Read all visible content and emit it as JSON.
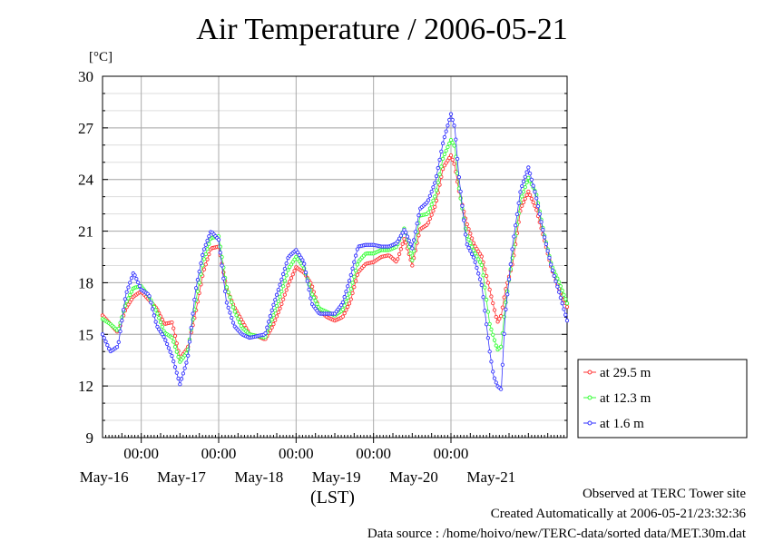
{
  "title": "Air Temperature / 2006-05-21",
  "y_unit": "[°C]",
  "x_unit": "(LST)",
  "footer": {
    "observed": "Observed at TERC Tower site",
    "created": "Created Automatically at 2006-05-21/23:32:36",
    "source": "Data source : /home/hoivo/new/TERC-data/sorted  data/MET.30m.dat"
  },
  "colors": {
    "s1": "#ff3333",
    "s2": "#33ff33",
    "s3": "#3333ff"
  },
  "chart_data": {
    "type": "line",
    "ylim": [
      9,
      30
    ],
    "yticks": [
      9,
      12,
      15,
      18,
      21,
      24,
      27,
      30
    ],
    "xlim": [
      0,
      6
    ],
    "x_unit_desc": "days from 2006-05-15 12:00 LST",
    "midnight_label": "00:00",
    "midnight_ticks": [
      0.5,
      1.5,
      2.5,
      3.5,
      4.5
    ],
    "day_labels": [
      "May-16",
      "May-17",
      "May-18",
      "May-19",
      "May-20",
      "May-21"
    ],
    "legend_position": "right",
    "grid": true,
    "series": [
      {
        "name": "at 29.5 m",
        "color": "#ff3333",
        "points": [
          [
            0,
            16.1
          ],
          [
            0.1,
            15.6
          ],
          [
            0.2,
            15.1
          ],
          [
            0.3,
            16.5
          ],
          [
            0.4,
            17.2
          ],
          [
            0.5,
            17.5
          ],
          [
            0.6,
            17.0
          ],
          [
            0.7,
            16.5
          ],
          [
            0.8,
            15.6
          ],
          [
            0.9,
            15.7
          ],
          [
            1.0,
            13.6
          ],
          [
            1.1,
            14.2
          ],
          [
            1.2,
            16.2
          ],
          [
            1.3,
            18.6
          ],
          [
            1.4,
            20.0
          ],
          [
            1.5,
            20.1
          ],
          [
            1.6,
            17.7
          ],
          [
            1.7,
            16.6
          ],
          [
            1.8,
            15.8
          ],
          [
            1.9,
            15.0
          ],
          [
            2.0,
            14.9
          ],
          [
            2.1,
            14.7
          ],
          [
            2.2,
            15.5
          ],
          [
            2.3,
            16.6
          ],
          [
            2.4,
            17.9
          ],
          [
            2.5,
            18.9
          ],
          [
            2.6,
            18.6
          ],
          [
            2.7,
            17.9
          ],
          [
            2.8,
            16.4
          ],
          [
            2.9,
            16.0
          ],
          [
            3.0,
            15.8
          ],
          [
            3.1,
            16.0
          ],
          [
            3.2,
            16.9
          ],
          [
            3.3,
            18.6
          ],
          [
            3.4,
            19.1
          ],
          [
            3.5,
            19.2
          ],
          [
            3.6,
            19.5
          ],
          [
            3.7,
            19.6
          ],
          [
            3.8,
            19.2
          ],
          [
            3.9,
            20.6
          ],
          [
            4.0,
            19.0
          ],
          [
            4.1,
            21.1
          ],
          [
            4.2,
            21.4
          ],
          [
            4.3,
            22.5
          ],
          [
            4.4,
            24.7
          ],
          [
            4.5,
            25.4
          ],
          [
            4.55,
            24.8
          ],
          [
            4.6,
            23.4
          ],
          [
            4.7,
            21.5
          ],
          [
            4.8,
            20.2
          ],
          [
            4.9,
            19.5
          ],
          [
            5.0,
            17.6
          ],
          [
            5.1,
            15.7
          ],
          [
            5.15,
            16.1
          ],
          [
            5.2,
            17.5
          ],
          [
            5.3,
            19.2
          ],
          [
            5.4,
            22.3
          ],
          [
            5.5,
            23.3
          ],
          [
            5.6,
            22.3
          ],
          [
            5.7,
            20.6
          ],
          [
            5.8,
            18.8
          ],
          [
            5.9,
            17.6
          ],
          [
            6.0,
            16.6
          ]
        ]
      },
      {
        "name": "at 12.3 m",
        "color": "#33ff33",
        "points": [
          [
            0,
            15.9
          ],
          [
            0.1,
            15.6
          ],
          [
            0.2,
            15.2
          ],
          [
            0.3,
            16.8
          ],
          [
            0.4,
            17.7
          ],
          [
            0.5,
            17.8
          ],
          [
            0.6,
            17.2
          ],
          [
            0.7,
            16.3
          ],
          [
            0.8,
            15.1
          ],
          [
            0.9,
            14.8
          ],
          [
            1.0,
            13.4
          ],
          [
            1.1,
            14.0
          ],
          [
            1.2,
            16.8
          ],
          [
            1.3,
            19.2
          ],
          [
            1.4,
            20.6
          ],
          [
            1.5,
            20.7
          ],
          [
            1.6,
            17.8
          ],
          [
            1.7,
            16.4
          ],
          [
            1.8,
            15.4
          ],
          [
            1.9,
            15.0
          ],
          [
            2.0,
            14.9
          ],
          [
            2.1,
            14.8
          ],
          [
            2.2,
            16.0
          ],
          [
            2.3,
            17.3
          ],
          [
            2.4,
            18.8
          ],
          [
            2.5,
            19.5
          ],
          [
            2.6,
            18.9
          ],
          [
            2.7,
            17.4
          ],
          [
            2.8,
            16.5
          ],
          [
            2.9,
            16.3
          ],
          [
            3.0,
            16.1
          ],
          [
            3.1,
            16.4
          ],
          [
            3.2,
            17.5
          ],
          [
            3.3,
            19.2
          ],
          [
            3.4,
            19.7
          ],
          [
            3.5,
            19.7
          ],
          [
            3.6,
            19.9
          ],
          [
            3.7,
            19.9
          ],
          [
            3.8,
            20.1
          ],
          [
            3.9,
            21.2
          ],
          [
            4.0,
            19.3
          ],
          [
            4.1,
            21.9
          ],
          [
            4.2,
            22.0
          ],
          [
            4.3,
            23.1
          ],
          [
            4.4,
            25.3
          ],
          [
            4.5,
            26.3
          ],
          [
            4.55,
            25.9
          ],
          [
            4.6,
            23.6
          ],
          [
            4.7,
            20.8
          ],
          [
            4.8,
            19.8
          ],
          [
            4.9,
            19.0
          ],
          [
            5.0,
            15.6
          ],
          [
            5.1,
            14.1
          ],
          [
            5.15,
            14.3
          ],
          [
            5.2,
            16.6
          ],
          [
            5.3,
            19.7
          ],
          [
            5.4,
            22.8
          ],
          [
            5.5,
            24.1
          ],
          [
            5.6,
            23.2
          ],
          [
            5.7,
            20.9
          ],
          [
            5.8,
            19.0
          ],
          [
            5.9,
            18.0
          ],
          [
            6.0,
            16.8
          ]
        ]
      },
      {
        "name": "at 1.6 m",
        "color": "#3333ff",
        "points": [
          [
            0,
            15.0
          ],
          [
            0.1,
            14.0
          ],
          [
            0.2,
            14.3
          ],
          [
            0.3,
            17.3
          ],
          [
            0.4,
            18.6
          ],
          [
            0.5,
            17.6
          ],
          [
            0.6,
            17.3
          ],
          [
            0.7,
            15.5
          ],
          [
            0.8,
            14.8
          ],
          [
            0.9,
            13.7
          ],
          [
            1.0,
            12.1
          ],
          [
            1.1,
            13.6
          ],
          [
            1.2,
            17.5
          ],
          [
            1.3,
            19.8
          ],
          [
            1.4,
            21.0
          ],
          [
            1.5,
            20.5
          ],
          [
            1.6,
            16.9
          ],
          [
            1.7,
            15.5
          ],
          [
            1.8,
            15.0
          ],
          [
            1.9,
            14.8
          ],
          [
            2.0,
            14.9
          ],
          [
            2.1,
            15.0
          ],
          [
            2.2,
            16.6
          ],
          [
            2.3,
            18.0
          ],
          [
            2.4,
            19.5
          ],
          [
            2.5,
            19.9
          ],
          [
            2.6,
            19.2
          ],
          [
            2.7,
            16.8
          ],
          [
            2.8,
            16.2
          ],
          [
            2.9,
            16.2
          ],
          [
            3.0,
            16.2
          ],
          [
            3.1,
            16.8
          ],
          [
            3.2,
            18.3
          ],
          [
            3.3,
            20.1
          ],
          [
            3.4,
            20.2
          ],
          [
            3.5,
            20.2
          ],
          [
            3.6,
            20.1
          ],
          [
            3.7,
            20.1
          ],
          [
            3.8,
            20.3
          ],
          [
            3.9,
            21.1
          ],
          [
            4.0,
            20.0
          ],
          [
            4.1,
            22.3
          ],
          [
            4.2,
            22.7
          ],
          [
            4.3,
            23.9
          ],
          [
            4.4,
            26.2
          ],
          [
            4.5,
            27.8
          ],
          [
            4.55,
            27.0
          ],
          [
            4.6,
            24.3
          ],
          [
            4.7,
            20.3
          ],
          [
            4.8,
            19.4
          ],
          [
            4.9,
            17.8
          ],
          [
            5.0,
            14.0
          ],
          [
            5.05,
            12.6
          ],
          [
            5.1,
            12.0
          ],
          [
            5.15,
            11.8
          ],
          [
            5.2,
            16.1
          ],
          [
            5.3,
            20.3
          ],
          [
            5.4,
            23.4
          ],
          [
            5.5,
            24.7
          ],
          [
            5.6,
            23.0
          ],
          [
            5.7,
            20.8
          ],
          [
            5.8,
            18.9
          ],
          [
            5.9,
            17.4
          ],
          [
            6.0,
            15.8
          ]
        ]
      }
    ]
  }
}
